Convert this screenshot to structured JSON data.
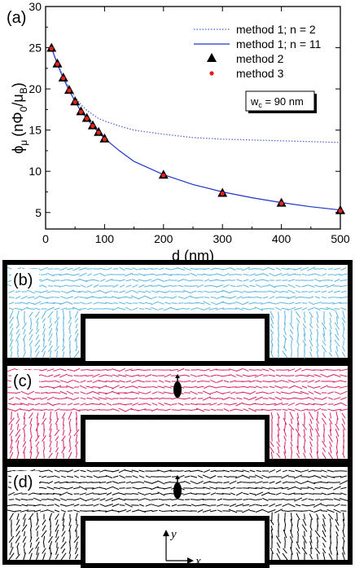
{
  "chart_data": {
    "type": "line",
    "panel_label": "(a)",
    "xlabel": "d (nm)",
    "ylabel_main": "ϕ",
    "ylabel_sub": "μ",
    "ylabel_paren": "(nΦ",
    "ylabel_sub2": "0",
    "ylabel_slash": "/μ",
    "ylabel_sub3": "B",
    "ylabel_close": ")",
    "xlim": [
      0,
      500
    ],
    "ylim": [
      3,
      30
    ],
    "xticks": [
      "0",
      "100",
      "200",
      "300",
      "400",
      "500"
    ],
    "yticks": [
      "5",
      "10",
      "15",
      "20",
      "25",
      "30"
    ],
    "annotation_main": "w",
    "annotation_sub": "c",
    "annotation_rest": " = 90 nm",
    "series": [
      {
        "name": "method 1; n = 2",
        "style": "dotted",
        "color": "#4a5fd0",
        "x": [
          10,
          20,
          30,
          40,
          50,
          60,
          70,
          80,
          90,
          100,
          125,
          150,
          200,
          250,
          300,
          350,
          400,
          450,
          500
        ],
        "y": [
          25.0,
          23.1,
          21.5,
          20.1,
          19.0,
          18.1,
          17.4,
          16.9,
          16.4,
          16.1,
          15.5,
          15.0,
          14.5,
          14.1,
          13.9,
          13.8,
          13.7,
          13.6,
          13.5
        ]
      },
      {
        "name": "method 1; n = 11",
        "style": "solid",
        "color": "#1f35c8",
        "x": [
          10,
          20,
          30,
          40,
          50,
          60,
          70,
          80,
          90,
          100,
          125,
          150,
          200,
          250,
          300,
          350,
          400,
          450,
          500
        ],
        "y": [
          25.0,
          23.0,
          21.3,
          19.8,
          18.5,
          17.3,
          16.4,
          15.5,
          14.7,
          14.0,
          12.5,
          11.2,
          9.6,
          8.4,
          7.5,
          6.8,
          6.2,
          5.7,
          5.3
        ]
      },
      {
        "name": "method 2",
        "style": "marker-triangle",
        "color": "#000000",
        "x": [
          10,
          20,
          30,
          40,
          50,
          60,
          70,
          80,
          90,
          100,
          200,
          300,
          400,
          500
        ],
        "y": [
          25.0,
          23.1,
          21.4,
          19.9,
          18.5,
          17.3,
          16.5,
          15.6,
          14.8,
          14.0,
          9.6,
          7.4,
          6.2,
          5.3
        ]
      },
      {
        "name": "method 3",
        "style": "marker-dot",
        "color": "#e0201a",
        "x": [
          10,
          20,
          30,
          40,
          50,
          60,
          70,
          80,
          90,
          100,
          200,
          300,
          400,
          500
        ],
        "y": [
          25.0,
          23.1,
          21.4,
          19.9,
          18.5,
          17.3,
          16.5,
          15.6,
          14.8,
          14.0,
          9.6,
          7.4,
          6.2,
          5.3
        ]
      }
    ]
  },
  "panels": [
    {
      "label": "(b)",
      "color": "#5ab4e0",
      "dipole": false
    },
    {
      "label": "(c)",
      "color": "#d8205a",
      "dipole": true
    },
    {
      "label": "(d)",
      "color": "#000000",
      "dipole": true
    }
  ],
  "axes_inset": {
    "y": "y",
    "x": "x"
  }
}
